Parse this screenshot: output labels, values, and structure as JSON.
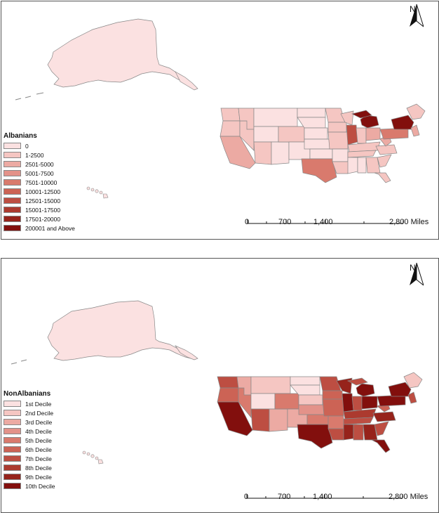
{
  "maps": [
    {
      "legend": {
        "title": "Albanians",
        "items": [
          {
            "label": "0",
            "color": "#fbe1e1"
          },
          {
            "label": "1-2500",
            "color": "#f5c6c2"
          },
          {
            "label": "2501-5000",
            "color": "#ecaaa3"
          },
          {
            "label": "5001-7500",
            "color": "#e39289"
          },
          {
            "label": "7501-10000",
            "color": "#d97a6d"
          },
          {
            "label": "10001-12500",
            "color": "#cc6355"
          },
          {
            "label": "12501-15000",
            "color": "#bd4e42"
          },
          {
            "label": "15001-17500",
            "color": "#ac3a2f"
          },
          {
            "label": "17501-20000",
            "color": "#96231b"
          },
          {
            "label": "200001 and Above",
            "color": "#820f0d"
          }
        ]
      },
      "north": "N",
      "scale": {
        "ticks": [
          "0",
          "700",
          "1,400",
          "2,800 Miles"
        ]
      }
    },
    {
      "legend": {
        "title": "NonAlbanians",
        "items": [
          {
            "label": "1st Decile",
            "color": "#fbe1e1"
          },
          {
            "label": "2nd Decile",
            "color": "#f5c6c2"
          },
          {
            "label": "3rd Decile",
            "color": "#ecaaa3"
          },
          {
            "label": "4th Decile",
            "color": "#e39289"
          },
          {
            "label": "5th Decile",
            "color": "#d97a6d"
          },
          {
            "label": "6th Decile",
            "color": "#cc6355"
          },
          {
            "label": "7th Decile",
            "color": "#bd4e42"
          },
          {
            "label": "8th Decile",
            "color": "#ac3a2f"
          },
          {
            "label": "9th Decile",
            "color": "#96231b"
          },
          {
            "label": "10th Decile",
            "color": "#820f0d"
          }
        ]
      },
      "north": "N",
      "scale": {
        "ticks": [
          "0",
          "700",
          "1,400",
          "2,800 Miles"
        ]
      }
    }
  ]
}
